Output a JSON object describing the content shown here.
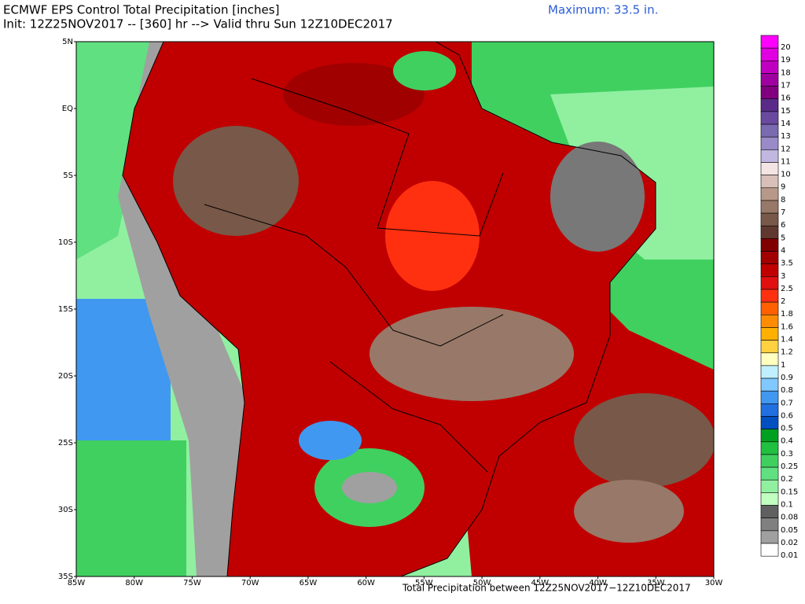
{
  "header": {
    "title": "ECMWF EPS Control Total Precipitation [inches]",
    "subtitle": "Init: 12Z25NOV2017 -- [360] hr --> Valid thru Sun 12Z10DEC2017",
    "maximum": "Maximum: 33.5 in.",
    "footer": "Total Precipitation between 12Z25NOV2017−12Z10DEC2017"
  },
  "map": {
    "lat_labels": [
      "5N",
      "EQ",
      "5S",
      "10S",
      "15S",
      "20S",
      "25S",
      "30S",
      "35S"
    ],
    "lon_labels": [
      "85W",
      "80W",
      "75W",
      "70W",
      "65W",
      "60W",
      "55W",
      "50W",
      "45W",
      "40W",
      "35W",
      "30W"
    ]
  },
  "legend": {
    "items": [
      {
        "label": "20",
        "color": "#ff00ff"
      },
      {
        "label": "19",
        "color": "#e000e0"
      },
      {
        "label": "18",
        "color": "#c000c0"
      },
      {
        "label": "17",
        "color": "#a000a0"
      },
      {
        "label": "16",
        "color": "#800080"
      },
      {
        "label": "15",
        "color": "#5a2a8a"
      },
      {
        "label": "14",
        "color": "#6a4aa0"
      },
      {
        "label": "13",
        "color": "#7a6ab0"
      },
      {
        "label": "12",
        "color": "#9a8ac8"
      },
      {
        "label": "11",
        "color": "#c0b8e0"
      },
      {
        "label": "10",
        "color": "#f4e4e4"
      },
      {
        "label": "9",
        "color": "#d8c0b8"
      },
      {
        "label": "8",
        "color": "#b89888"
      },
      {
        "label": "7",
        "color": "#987868"
      },
      {
        "label": "6",
        "color": "#785848"
      },
      {
        "label": "5",
        "color": "#603830"
      },
      {
        "label": "4",
        "color": "#800000"
      },
      {
        "label": "3.5",
        "color": "#a00000"
      },
      {
        "label": "3",
        "color": "#c00000"
      },
      {
        "label": "2.5",
        "color": "#e01010"
      },
      {
        "label": "2",
        "color": "#ff3010"
      },
      {
        "label": "1.8",
        "color": "#ff6000"
      },
      {
        "label": "1.6",
        "color": "#ff8c00"
      },
      {
        "label": "1.4",
        "color": "#ffb000"
      },
      {
        "label": "1.2",
        "color": "#ffd040"
      },
      {
        "label": "1",
        "color": "#ffffc0"
      },
      {
        "label": "0.9",
        "color": "#c0f0ff"
      },
      {
        "label": "0.8",
        "color": "#80c8ff"
      },
      {
        "label": "0.7",
        "color": "#4098f0"
      },
      {
        "label": "0.6",
        "color": "#2070e0"
      },
      {
        "label": "0.5",
        "color": "#0050c0"
      },
      {
        "label": "0.4",
        "color": "#00a020"
      },
      {
        "label": "0.3",
        "color": "#20c040"
      },
      {
        "label": "0.25",
        "color": "#40d060"
      },
      {
        "label": "0.2",
        "color": "#60e080"
      },
      {
        "label": "0.15",
        "color": "#90f0a0"
      },
      {
        "label": "0.1",
        "color": "#c0ffc0"
      },
      {
        "label": "0.08",
        "color": "#606060"
      },
      {
        "label": "0.05",
        "color": "#808080"
      },
      {
        "label": "0.02",
        "color": "#a0a0a0"
      },
      {
        "label": "0.01",
        "color": "#ffffff"
      }
    ]
  }
}
